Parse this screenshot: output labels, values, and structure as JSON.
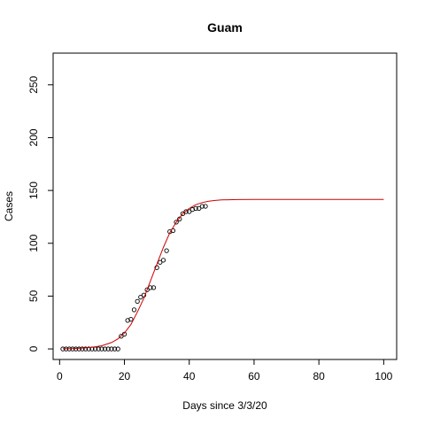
{
  "chart_data": {
    "type": "scatter",
    "title": "Guam",
    "xlabel": "Days since 3/3/20",
    "ylabel": "Cases",
    "xlim": [
      -2,
      104
    ],
    "ylim": [
      -10,
      280
    ],
    "xticks": [
      0,
      20,
      40,
      60,
      80,
      100
    ],
    "yticks": [
      0,
      50,
      100,
      150,
      200,
      250
    ],
    "grid": false,
    "series": [
      {
        "kind": "points",
        "color": "#000000",
        "x": [
          1,
          2,
          3,
          4,
          5,
          6,
          7,
          8,
          9,
          10,
          11,
          12,
          13,
          14,
          15,
          16,
          17,
          18,
          19,
          20,
          21,
          22,
          23,
          24,
          25,
          26,
          27,
          28,
          29,
          30,
          31,
          32,
          33,
          34,
          35,
          36,
          37,
          38,
          39,
          40,
          41,
          42,
          43,
          44,
          45
        ],
        "y": [
          0,
          0,
          0,
          0,
          0,
          0,
          0,
          0,
          0,
          0,
          0,
          0,
          0,
          0,
          0,
          0,
          0,
          0,
          12,
          14,
          27,
          28,
          37,
          45,
          49,
          51,
          56,
          58,
          58,
          77,
          82,
          84,
          93,
          111,
          112,
          120,
          123,
          128,
          130,
          130,
          132,
          133,
          133,
          135,
          135
        ]
      },
      {
        "kind": "line",
        "color": "#cc0000",
        "x": [
          1,
          4,
          7,
          10,
          13,
          16,
          18,
          20,
          22,
          24,
          26,
          28,
          30,
          32,
          34,
          36,
          38,
          40,
          42,
          44,
          46,
          48,
          50,
          52,
          55,
          60,
          65,
          70,
          80,
          90,
          100
        ],
        "y": [
          0.2,
          0.4,
          0.8,
          1.5,
          3,
          6,
          9.5,
          15,
          23,
          35,
          48,
          64,
          80,
          96,
          110,
          120,
          128,
          133,
          136.5,
          138.5,
          139.8,
          140.5,
          141,
          141.2,
          141.4,
          141.5,
          141.5,
          141.5,
          141.5,
          141.5,
          141.5
        ]
      }
    ]
  }
}
